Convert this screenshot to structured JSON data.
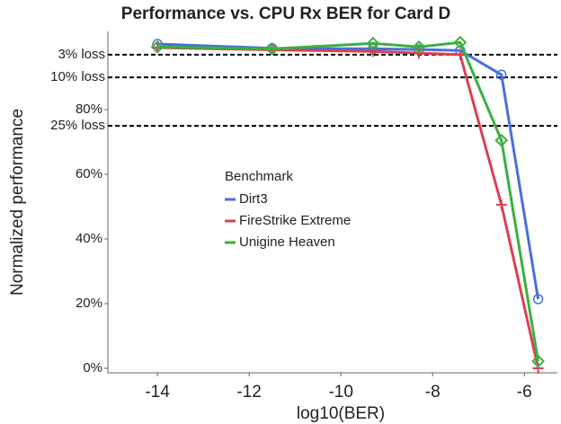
{
  "chart_data": {
    "type": "line",
    "title": "Performance vs. CPU Rx BER for Card D",
    "x_label": "log10(BER)",
    "y_label": "Normalized performance",
    "legend_title": "Benchmark",
    "x": [
      -14,
      -11.5,
      -9.3,
      -8.3,
      -7.4,
      -6.5,
      -5.7
    ],
    "series": [
      {
        "name": "Dirt3",
        "color": "#4a6fd8",
        "marker": "circle",
        "values": [
          100.3,
          99,
          98.8,
          98.6,
          98.3,
          90.8,
          21.4
        ]
      },
      {
        "name": "FireStrike Extreme",
        "color": "#d94055",
        "marker": "plus",
        "values": [
          99.2,
          98.5,
          98,
          97.5,
          97,
          50.6,
          0
        ]
      },
      {
        "name": "Unigine Heaven",
        "color": "#3bb040",
        "marker": "diamond",
        "values": [
          99.4,
          98.8,
          100.5,
          99.4,
          100.8,
          70.5,
          2.2
        ]
      }
    ],
    "xlim": [
      -15.08,
      -5.28
    ],
    "xticks": [
      -14,
      -12,
      -10,
      -8,
      -6
    ],
    "ylim": [
      -1.4,
      104.2
    ],
    "yticks": [
      {
        "value": 0,
        "label": "0%"
      },
      {
        "value": 20,
        "label": "20%"
      },
      {
        "value": 40,
        "label": "40%"
      },
      {
        "value": 60,
        "label": "60%"
      },
      {
        "value": 80,
        "label": "80%"
      }
    ],
    "reference_lines": [
      {
        "value": 97,
        "label": "3% loss"
      },
      {
        "value": 90,
        "label": "10% loss"
      },
      {
        "value": 75,
        "label": "25% loss"
      }
    ]
  }
}
